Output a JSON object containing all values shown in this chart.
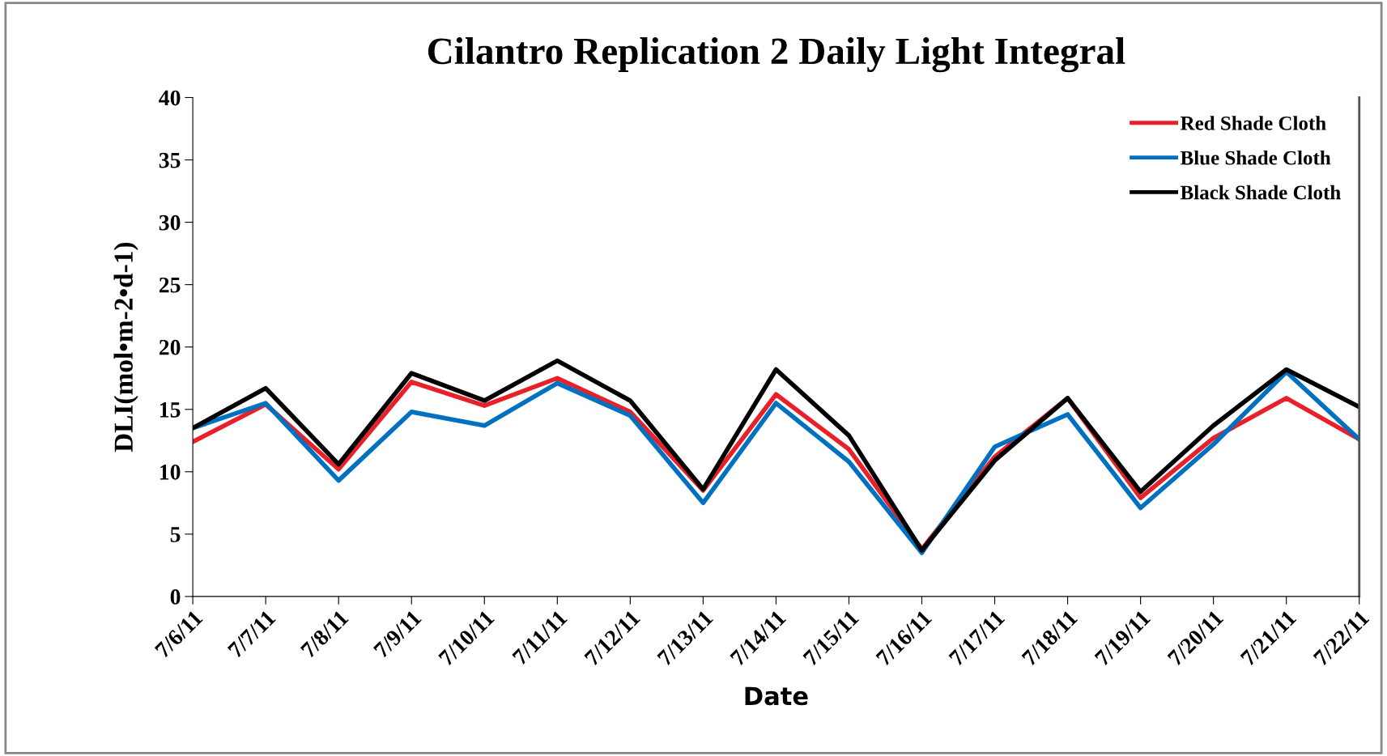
{
  "chart_data": {
    "type": "line",
    "title": "Cilantro Replication 2 Daily Light Integral",
    "xlabel": "Date",
    "ylabel": "DLI(mol•m-2•d-1)",
    "categories": [
      "7/6/11",
      "7/7/11",
      "7/8/11",
      "7/9/11",
      "7/10/11",
      "7/11/11",
      "7/12/11",
      "7/13/11",
      "7/14/11",
      "7/15/11",
      "7/16/11",
      "7/17/11",
      "7/18/11",
      "7/19/11",
      "7/20/11",
      "7/21/11",
      "7/22/11"
    ],
    "series": [
      {
        "name": "Red Shade Cloth",
        "color": "#e8202a",
        "values": [
          12.4,
          15.4,
          10.2,
          17.2,
          15.3,
          17.5,
          14.8,
          8.5,
          16.2,
          11.8,
          3.8,
          11.2,
          15.9,
          7.9,
          12.7,
          15.9,
          12.6
        ]
      },
      {
        "name": "Blue Shade Cloth",
        "color": "#0070c0",
        "values": [
          13.5,
          15.5,
          9.3,
          14.8,
          13.7,
          17.1,
          14.5,
          7.5,
          15.5,
          10.8,
          3.5,
          12.0,
          14.6,
          7.1,
          12.2,
          18.0,
          12.6
        ]
      },
      {
        "name": "Black Shade Cloth",
        "color": "#000000",
        "values": [
          13.5,
          16.7,
          10.6,
          17.9,
          15.7,
          18.9,
          15.7,
          8.6,
          18.2,
          12.9,
          3.7,
          10.9,
          15.9,
          8.4,
          13.7,
          18.2,
          15.2
        ]
      }
    ],
    "ylim": [
      0,
      40
    ],
    "yticks": [
      0,
      5,
      10,
      15,
      20,
      25,
      30,
      35,
      40
    ],
    "grid": false,
    "legend": "top right",
    "marker": "none",
    "line_style": "solid"
  }
}
